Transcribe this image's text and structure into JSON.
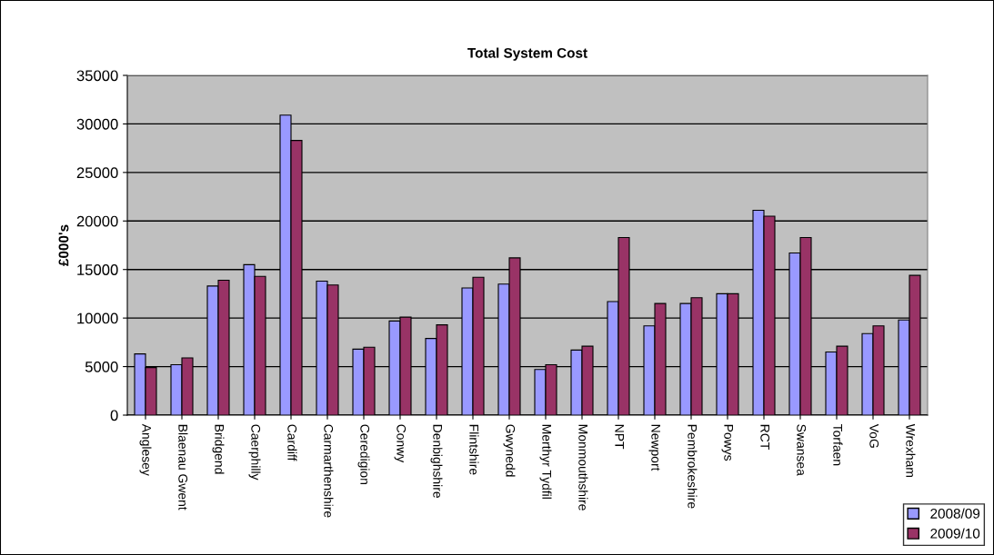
{
  "chart_data": {
    "type": "bar",
    "title": "Total System Cost",
    "ylabel": "£000's",
    "categories": [
      "Anglesey",
      "Blaenau Gwent",
      "Bridgend",
      "Caerphilly",
      "Cardiff",
      "Carmarthenshire",
      "Ceredigion",
      "Conwy",
      "Denbighshire",
      "Flintshire",
      "Gwynedd",
      "Merthyr Tydfil",
      "Monmouthshire",
      "NPT",
      "Newport",
      "Pembrokeshire",
      "Powys",
      "RCT",
      "Swansea",
      "Torfaen",
      "VoG",
      "Wrexham"
    ],
    "series": [
      {
        "name": "2008/09",
        "color": "#9999ff",
        "values": [
          6300,
          5200,
          13300,
          15500,
          30900,
          13800,
          6800,
          9700,
          7900,
          13100,
          13500,
          4700,
          6700,
          11700,
          9200,
          11500,
          12500,
          21100,
          16700,
          6500,
          8400,
          9800
        ]
      },
      {
        "name": "2009/10",
        "color": "#993366",
        "values": [
          4900,
          5900,
          13900,
          14300,
          28300,
          13400,
          7000,
          10100,
          9300,
          14200,
          16200,
          5200,
          7100,
          18300,
          11500,
          12100,
          12500,
          20500,
          18300,
          7100,
          9200,
          14400
        ]
      }
    ],
    "ylim": [
      0,
      35000
    ],
    "yticks": [
      0,
      5000,
      10000,
      15000,
      20000,
      25000,
      30000,
      35000
    ],
    "grid": "y",
    "legend": "bottom right"
  }
}
